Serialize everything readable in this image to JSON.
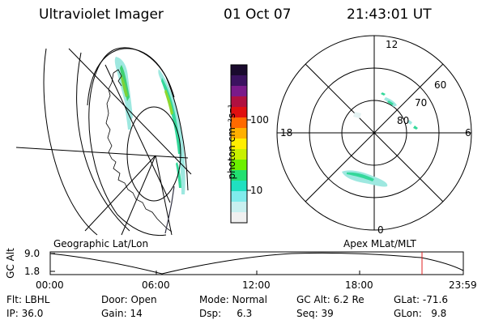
{
  "header": {
    "instrument": "Ultraviolet Imager",
    "date": "01 Oct 07",
    "time": "21:43:01 UT"
  },
  "colorbar": {
    "unit_label": "photon cm⁻²s⁻¹",
    "ticks": [
      "100",
      "10"
    ],
    "colors": [
      "#1a0a2e",
      "#3b1260",
      "#7a1a8a",
      "#b01040",
      "#e01010",
      "#ff6a00",
      "#ffb000",
      "#ffee00",
      "#c8f000",
      "#6cf000",
      "#22e070",
      "#20e0c0",
      "#80ecec",
      "#c8f0f0",
      "#f0f0f0"
    ]
  },
  "polar_plot": {
    "mlt_labels": {
      "top": "12",
      "left": "18",
      "right": "6",
      "bottom": "0"
    },
    "lat_labels": [
      "60",
      "70",
      "80"
    ]
  },
  "map_labels": {
    "left": "Geographic Lat/Lon",
    "right": "Apex MLat/MLT"
  },
  "altitude_plot": {
    "ylabel": "GC Alt",
    "yticks": [
      "9.0",
      "1.8"
    ],
    "xticks": [
      "00:00",
      "06:00",
      "12:00",
      "18:00",
      "23:59"
    ],
    "marker_time": "21:43"
  },
  "info": {
    "row1": [
      {
        "label": "Flt: LBHL"
      },
      {
        "label": "Door: Open"
      },
      {
        "label": "Mode: Normal"
      },
      {
        "label": "GC Alt: 6.2 Re"
      },
      {
        "label": "GLat: -71.6"
      }
    ],
    "row2": [
      {
        "label": "IP: 36.0"
      },
      {
        "label": "Gain: 14"
      },
      {
        "label": "Dsp:     6.3"
      },
      {
        "label": "Seq: 39"
      },
      {
        "label": "GLon:   9.8"
      }
    ]
  }
}
